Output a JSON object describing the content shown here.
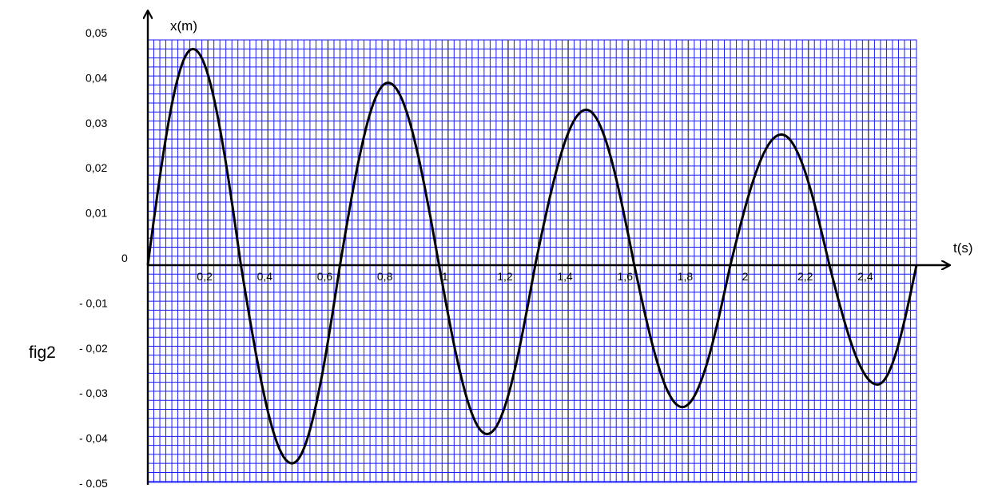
{
  "figure_label": "fig2",
  "chart_data": {
    "type": "line",
    "title": "",
    "xlabel": "t(s)",
    "ylabel": "x(m)",
    "xlim": [
      0,
      2.56
    ],
    "ylim": [
      -0.05,
      0.05
    ],
    "grid": true,
    "x_ticks": [
      0.2,
      0.4,
      0.6,
      0.8,
      1,
      1.2,
      1.4,
      1.6,
      1.8,
      2,
      2.2,
      2.4
    ],
    "x_tick_labels": [
      "0,2",
      "0,4",
      "0,6",
      "0,8",
      "1",
      "1,2",
      "1,4",
      "1,6",
      "1,8",
      "2",
      "2,2",
      "2,4"
    ],
    "y_ticks": [
      0.05,
      0.04,
      0.03,
      0.02,
      0.01,
      0,
      -0.01,
      -0.02,
      -0.03,
      -0.04,
      -0.05
    ],
    "y_tick_labels": [
      "0,05",
      "0,04",
      "0,03",
      "0,02",
      "0,01",
      "0",
      "- 0,01",
      "- 0,02",
      "- 0,03",
      "- 0,04",
      "- 0,05"
    ],
    "colors": {
      "grid": "#1a1aff",
      "grid_major": "#555555",
      "curve": "#000000",
      "background": "#ffffff"
    },
    "series": [
      {
        "x": [
          0,
          0.15,
          0.31,
          0.48,
          0.64,
          0.8,
          0.97,
          1.13,
          1.29,
          1.46,
          1.62,
          1.78,
          1.94,
          2.11,
          2.27,
          2.43,
          2.56
        ],
        "y": [
          0,
          0.048,
          0,
          -0.044,
          0,
          0.0405,
          0,
          -0.0375,
          0,
          0.0345,
          0,
          -0.0315,
          0,
          0.029,
          0,
          -0.0265,
          0
        ]
      }
    ]
  }
}
